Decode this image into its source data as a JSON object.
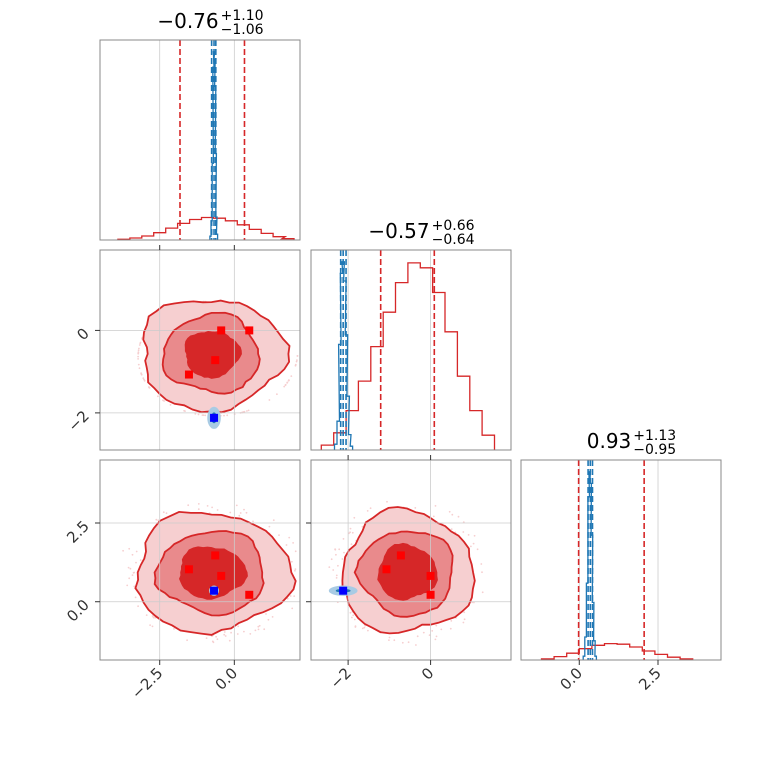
{
  "colors": {
    "red": "#d62728",
    "red_mid": "#e98a8c",
    "red_light": "#f6cfd0",
    "blue": "#1f77b4",
    "blue_marker": "#0000ff",
    "red_marker": "#ff0000"
  },
  "chart_data": {
    "type": "corner",
    "params": [
      {
        "index": 0,
        "range": [
          -4.5,
          2.2
        ],
        "ticks": [
          -2.5,
          0.0
        ],
        "tick_labels": [
          "−2.5",
          "0.0"
        ]
      },
      {
        "index": 1,
        "range": [
          -2.9,
          1.95
        ],
        "ticks": [
          -2,
          0
        ],
        "tick_labels": [
          "−2",
          "0"
        ]
      },
      {
        "index": 2,
        "range": [
          -1.85,
          4.5
        ],
        "ticks": [
          0.0,
          2.5
        ],
        "tick_labels": [
          "0.0",
          "2.5"
        ]
      }
    ],
    "titles": [
      {
        "median": "−0.76",
        "plus": "+1.10",
        "minus": "−1.06"
      },
      {
        "median": "−0.57",
        "plus": "+0.66",
        "minus": "−0.64"
      },
      {
        "median": "0.93",
        "plus": "+1.13",
        "minus": "−0.95"
      }
    ],
    "quantiles": {
      "red": [
        [
          -1.82,
          -0.76,
          0.34
        ],
        [
          -1.21,
          -0.57,
          0.09
        ],
        [
          -0.02,
          0.93,
          2.06
        ]
      ],
      "blue": [
        [
          -0.76,
          -0.68,
          -0.62
        ],
        [
          -2.18,
          -2.12,
          -2.05
        ],
        [
          0.28,
          0.35,
          0.42
        ]
      ]
    },
    "marginals": {
      "red": [
        {
          "x": [
            -3.7,
            -3.3,
            -2.9,
            -2.5,
            -2.1,
            -1.7,
            -1.3,
            -0.9,
            -0.5,
            -0.1,
            0.3,
            0.7,
            1.1,
            1.5,
            1.8
          ],
          "y": [
            0.2,
            0.6,
            1.2,
            2.2,
            3.6,
            5.0,
            6.2,
            6.8,
            6.6,
            5.8,
            4.6,
            3.2,
            2.0,
            1.0,
            0.4
          ]
        },
        {
          "x": [
            -2.5,
            -2.2,
            -1.9,
            -1.6,
            -1.3,
            -1.0,
            -0.7,
            -0.4,
            -0.1,
            0.2,
            0.5,
            0.8,
            1.1,
            1.4
          ],
          "y": [
            0.2,
            0.7,
            1.6,
            2.8,
            4.2,
            5.6,
            6.8,
            7.6,
            7.4,
            6.4,
            4.8,
            3.0,
            1.6,
            0.6
          ]
        },
        {
          "x": [
            -1.0,
            -0.6,
            -0.2,
            0.2,
            0.6,
            1.0,
            1.4,
            1.8,
            2.2,
            2.6,
            3.0,
            3.4
          ],
          "y": [
            0.2,
            0.6,
            1.2,
            2.0,
            2.6,
            2.9,
            2.8,
            2.3,
            1.6,
            1.0,
            0.5,
            0.2
          ]
        }
      ],
      "blue": [
        {
          "x": [
            -0.8,
            -0.76,
            -0.72,
            -0.7,
            -0.68,
            -0.66,
            -0.64,
            -0.62,
            -0.6,
            -0.58
          ],
          "y": [
            2,
            10,
            40,
            90,
            98,
            94,
            80,
            45,
            12,
            3
          ]
        },
        {
          "x": [
            -2.3,
            -2.24,
            -2.2,
            -2.16,
            -2.12,
            -2.08,
            -2.04,
            -2.0,
            -1.96,
            -1.92
          ],
          "y": [
            3,
            15,
            55,
            92,
            98,
            88,
            60,
            28,
            8,
            2
          ]
        },
        {
          "x": [
            0.15,
            0.2,
            0.25,
            0.3,
            0.33,
            0.36,
            0.4,
            0.44,
            0.48,
            0.52
          ],
          "y": [
            2,
            12,
            40,
            85,
            98,
            92,
            65,
            30,
            10,
            2
          ]
        }
      ],
      "red_max": 7.0,
      "red_max_list": [
        58,
        7.8,
        34
      ],
      "blue_max": 100
    },
    "contours_red": [
      {
        "pair": [
          0,
          1
        ],
        "levels": [
          {
            "cx": -0.76,
            "cy": -0.57,
            "rx": [
              2.4,
              1.6,
              0.9
            ],
            "ry": [
              1.35,
              0.95,
              0.55
            ]
          }
        ]
      },
      {
        "pair": [
          0,
          2
        ],
        "levels": [
          {
            "cx": -0.76,
            "cy": 0.93,
            "rx": [
              2.6,
              1.8,
              1.1
            ],
            "ry": [
              1.9,
              1.3,
              0.8
            ]
          }
        ]
      },
      {
        "pair": [
          1,
          2
        ],
        "levels": [
          {
            "cx": -0.57,
            "cy": 0.93,
            "rx": [
              1.6,
              1.15,
              0.7
            ],
            "ry": [
              1.95,
              1.35,
              0.85
            ]
          }
        ]
      }
    ],
    "contours_blue": [
      {
        "pair": [
          0,
          1
        ],
        "cx": -0.68,
        "cy": -2.12,
        "rx": 0.16,
        "ry": 0.22
      },
      {
        "pair": [
          0,
          2
        ],
        "cx": -0.68,
        "cy": 0.35,
        "rx": 0.1,
        "ry": 0.1
      },
      {
        "pair": [
          1,
          2
        ],
        "cx": -2.12,
        "cy": 0.35,
        "rx": 0.3,
        "ry": 0.1
      }
    ],
    "markers_red": [
      {
        "pair": [
          0,
          1
        ],
        "points": [
          [
            -0.44,
            0.0
          ],
          [
            0.5,
            0.0
          ],
          [
            -0.64,
            -0.72
          ],
          [
            -1.52,
            -1.07
          ]
        ]
      },
      {
        "pair": [
          0,
          2
        ],
        "points": [
          [
            -1.52,
            1.03
          ],
          [
            -0.64,
            1.47
          ],
          [
            -0.44,
            0.82
          ],
          [
            0.5,
            0.22
          ]
        ]
      },
      {
        "pair": [
          1,
          2
        ],
        "points": [
          [
            -1.07,
            1.03
          ],
          [
            -0.72,
            1.47
          ],
          [
            0.0,
            0.82
          ],
          [
            0.0,
            0.22
          ]
        ]
      }
    ],
    "markers_blue": [
      {
        "pair": [
          0,
          1
        ],
        "points": [
          [
            -0.68,
            -2.12
          ]
        ]
      },
      {
        "pair": [
          0,
          2
        ],
        "points": [
          [
            -0.68,
            0.35
          ]
        ]
      },
      {
        "pair": [
          1,
          2
        ],
        "points": [
          [
            -2.12,
            0.35
          ]
        ]
      }
    ]
  }
}
